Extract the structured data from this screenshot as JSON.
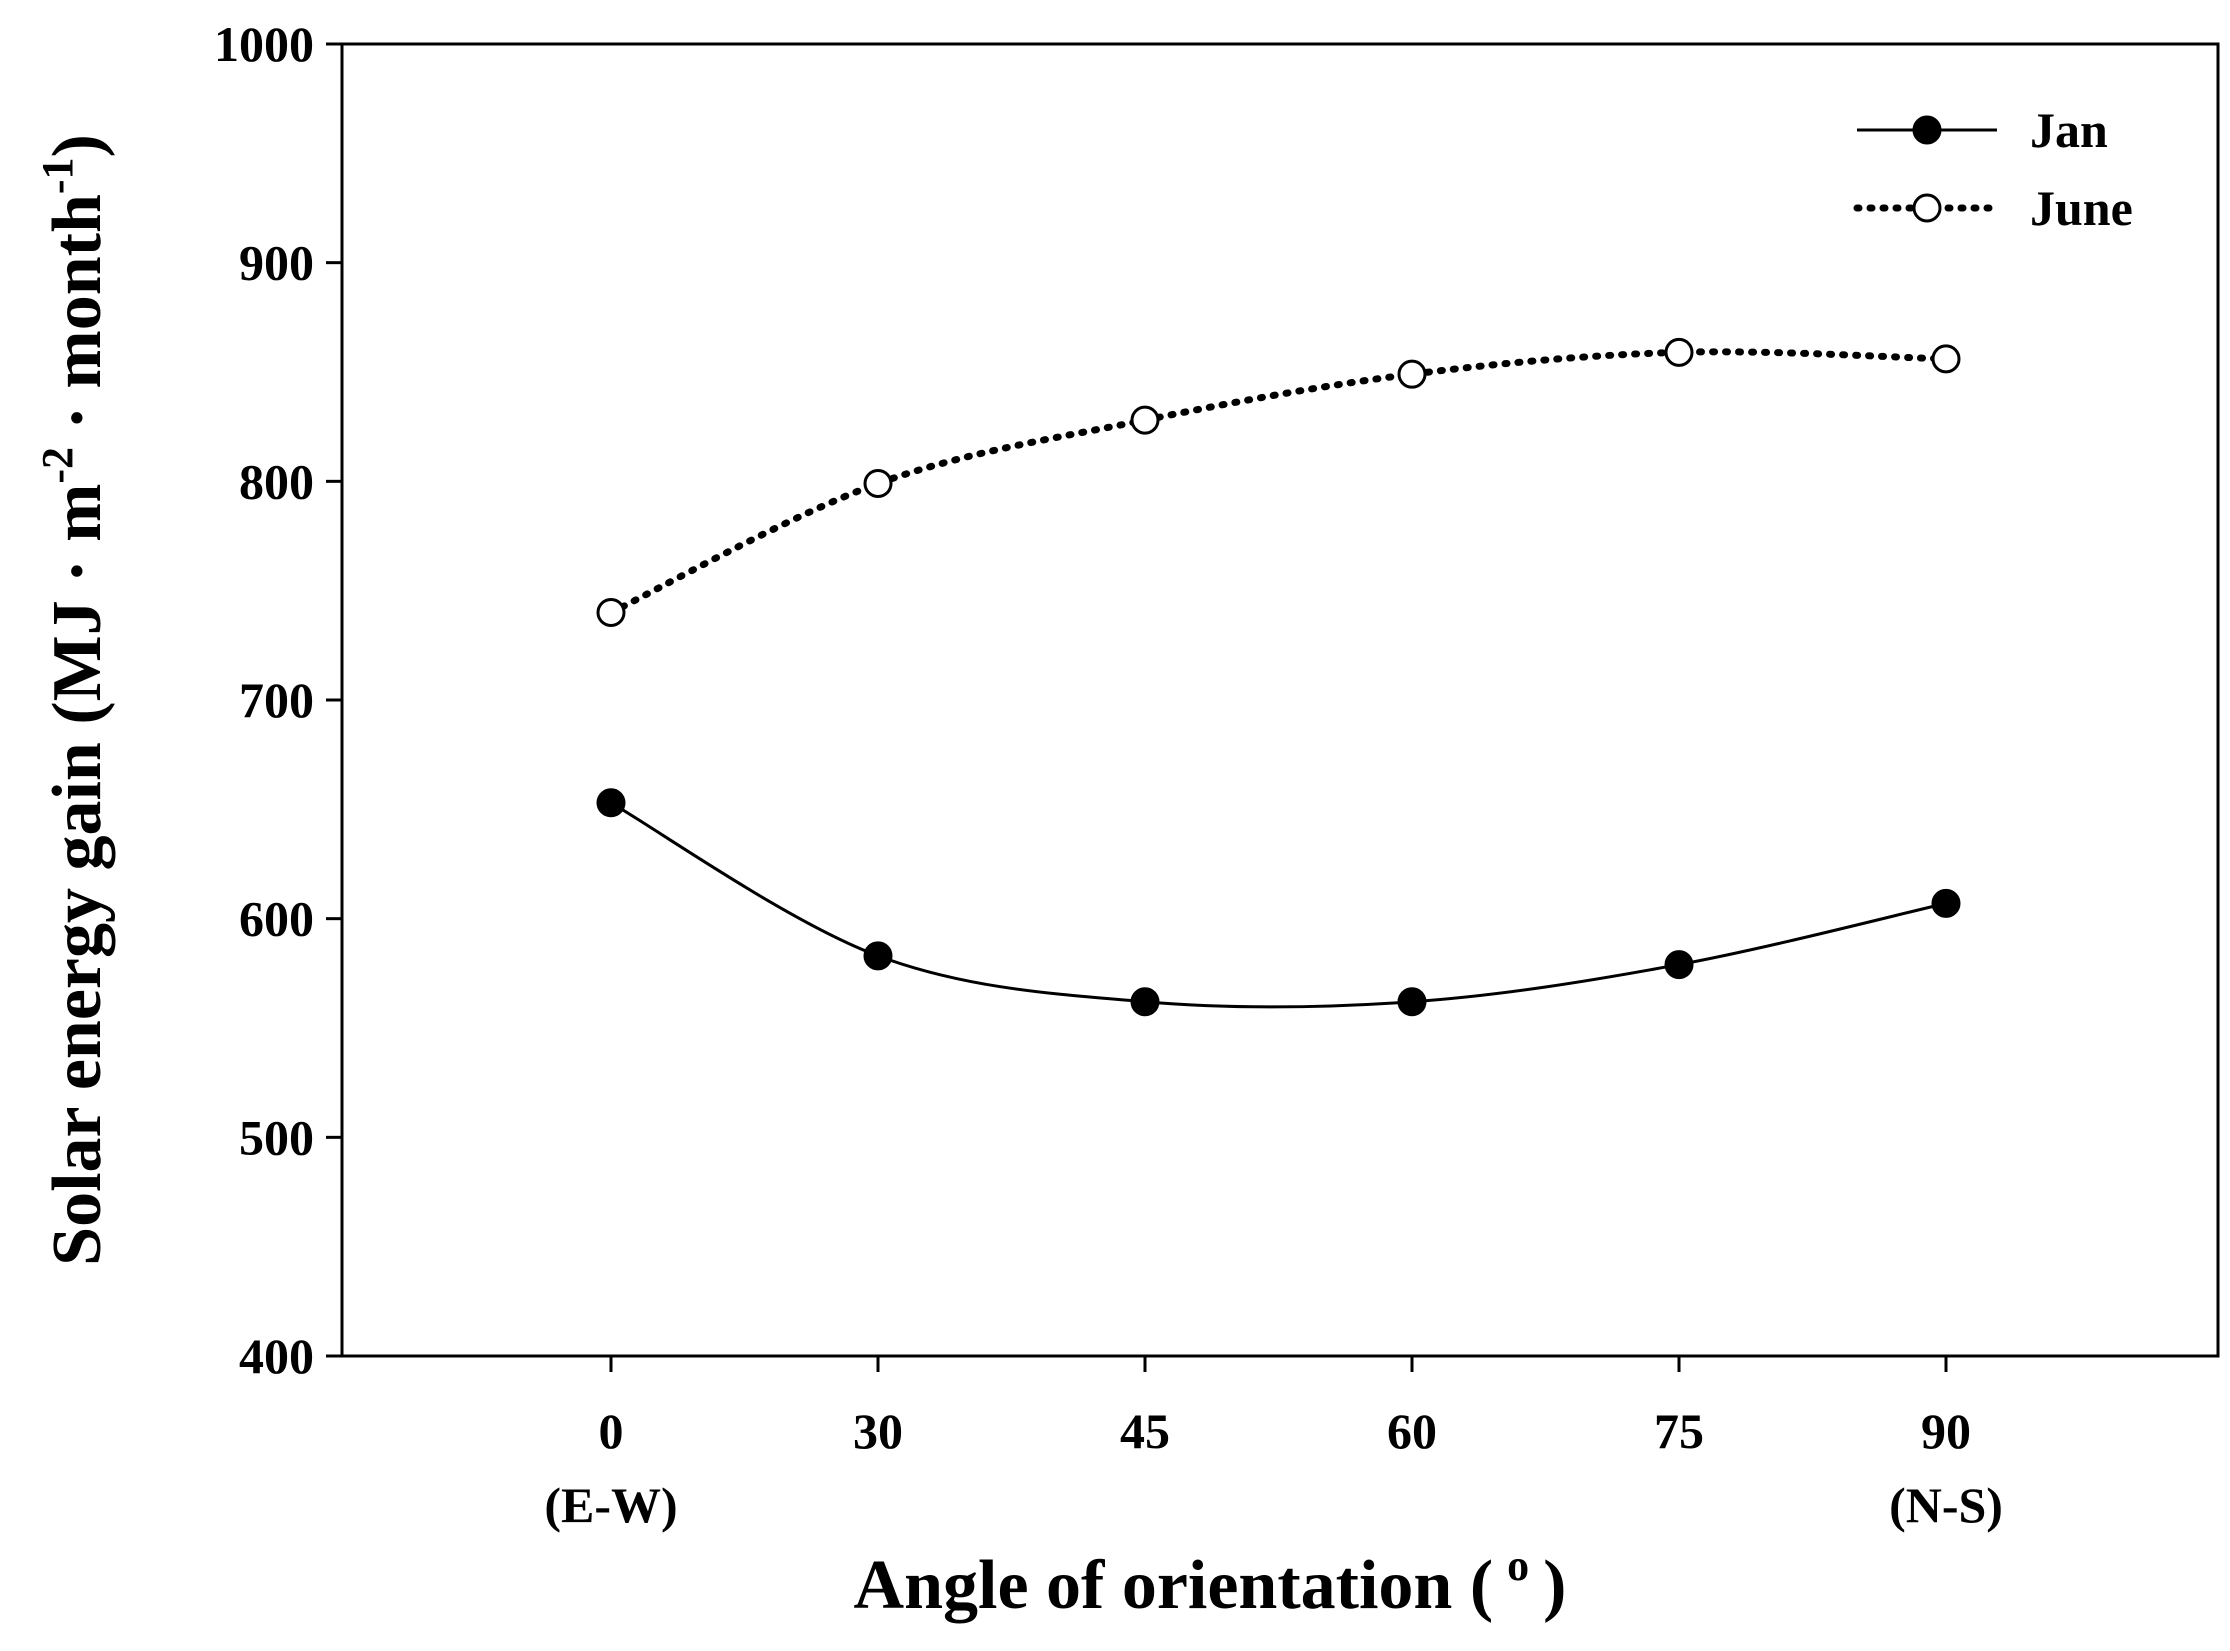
{
  "chart_data": {
    "type": "line",
    "title": "",
    "xlabel": "Angle of orientation ( ° )",
    "xlabel_main": "Angle of orientation (",
    "xlabel_degree": "o",
    "xlabel_close": ")",
    "ylabel": "Solar energy gain (MJ · m-2 · month-1)",
    "ylabel_main": "Solar energy gain (MJ · m",
    "ylabel_sup1": "-2",
    "ylabel_mid": " · month",
    "ylabel_sup2": "-1",
    "ylabel_close": ")",
    "x": [
      0,
      30,
      45,
      60,
      75,
      90
    ],
    "x_tick_labels": [
      "0",
      "30",
      "45",
      "60",
      "75",
      "90"
    ],
    "x_tick_sublabels": [
      "(E-W)",
      "",
      "",
      "",
      "",
      "(N-S)"
    ],
    "ylim": [
      400,
      1000
    ],
    "y_ticks": [
      400,
      500,
      600,
      700,
      800,
      900,
      1000
    ],
    "grid": false,
    "legend_position": "top-right",
    "series": [
      {
        "name": "Jan",
        "values": [
          653,
          583,
          562,
          562,
          579,
          607
        ],
        "marker": "filled-circle",
        "line_style": "solid",
        "color": "#000000"
      },
      {
        "name": "June",
        "values": [
          740,
          799,
          828,
          849,
          859,
          856
        ],
        "marker": "open-circle",
        "line_style": "dotted",
        "color": "#000000"
      }
    ]
  }
}
